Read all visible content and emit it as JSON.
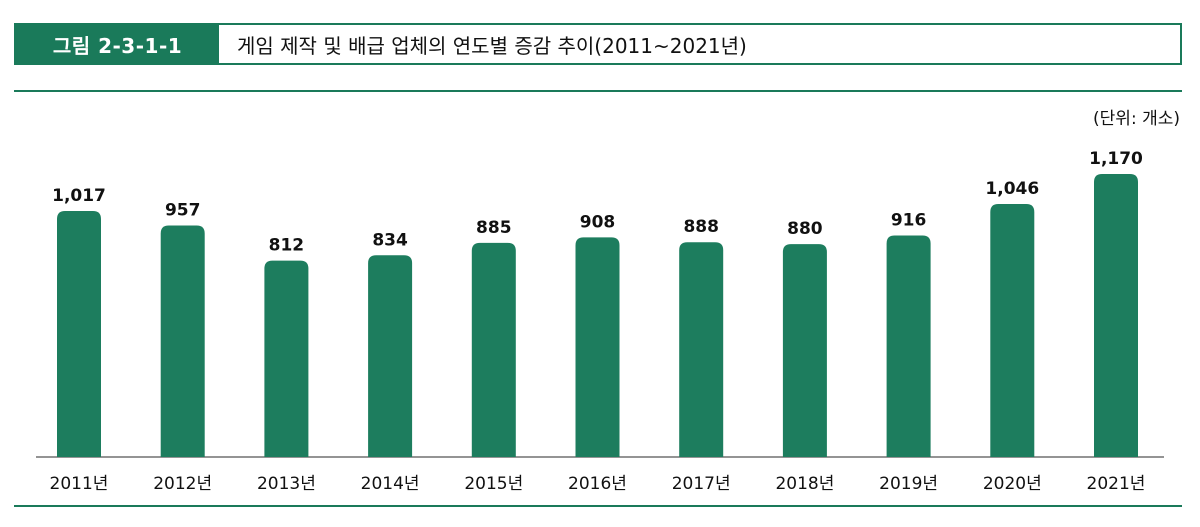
{
  "figure": {
    "label": "그림 2-3-1-1",
    "title": "게임 제작 및 배급 업체의 연도별 증감 추이(2011~2021년)",
    "unit": "(단위: 개소)"
  },
  "colors": {
    "accent": "#1a7a5a",
    "bar": "#1d7d5e"
  },
  "chart_data": {
    "type": "bar",
    "categories": [
      "2011년",
      "2012년",
      "2013년",
      "2014년",
      "2015년",
      "2016년",
      "2017년",
      "2018년",
      "2019년",
      "2020년",
      "2021년"
    ],
    "values": [
      1017,
      957,
      812,
      834,
      885,
      908,
      888,
      880,
      916,
      1046,
      1170
    ],
    "value_labels": [
      "1,017",
      "957",
      "812",
      "834",
      "885",
      "908",
      "888",
      "880",
      "916",
      "1,046",
      "1,170"
    ],
    "title": "게임 제작 및 배급 업체의 연도별 증감 추이(2011~2021년)",
    "xlabel": "",
    "ylabel": "",
    "unit": "(단위: 개소)",
    "ylim": [
      0,
      1170
    ],
    "grid": false
  }
}
